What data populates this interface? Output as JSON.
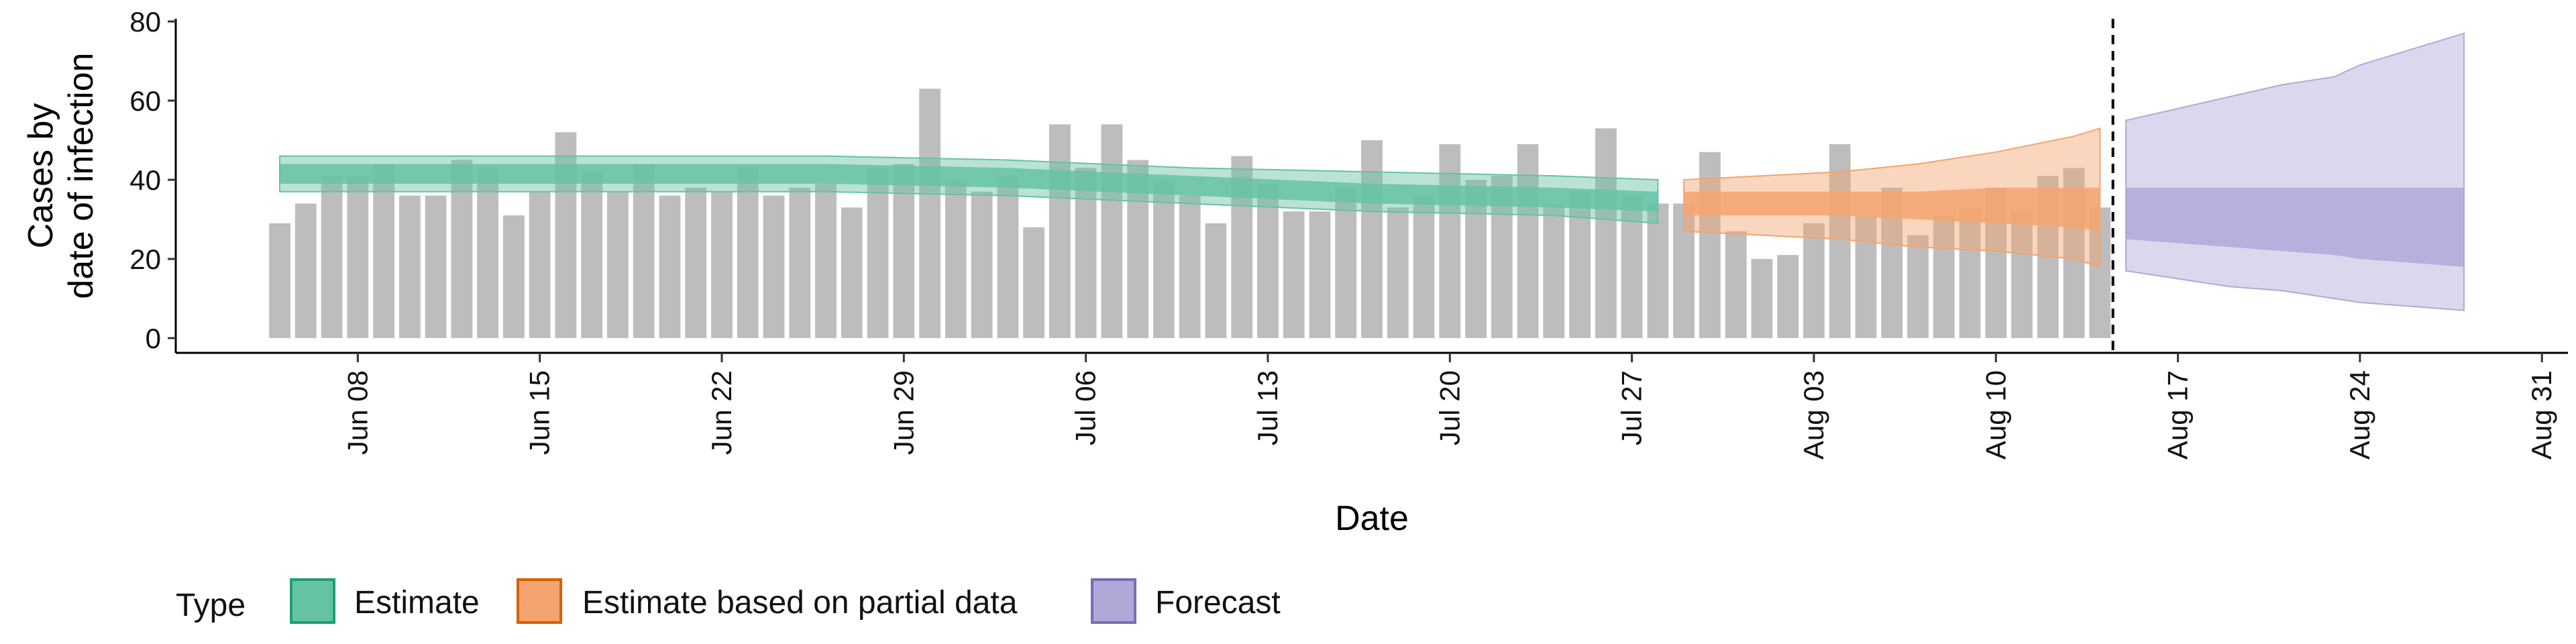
{
  "chart_data": {
    "type": "bar",
    "xlabel": "Date",
    "ylabel_lines": [
      "Cases by",
      "date of infection"
    ],
    "ylim": [
      0,
      80
    ],
    "yticks": [
      0,
      20,
      40,
      60,
      80
    ],
    "xlim": [
      "2020-06-01",
      "2020-09-01"
    ],
    "xticks": [
      {
        "date": "2020-06-08",
        "label": "Jun 08"
      },
      {
        "date": "2020-06-15",
        "label": "Jun 15"
      },
      {
        "date": "2020-06-22",
        "label": "Jun 22"
      },
      {
        "date": "2020-06-29",
        "label": "Jun 29"
      },
      {
        "date": "2020-07-06",
        "label": "Jul 06"
      },
      {
        "date": "2020-07-13",
        "label": "Jul 13"
      },
      {
        "date": "2020-07-20",
        "label": "Jul 20"
      },
      {
        "date": "2020-07-27",
        "label": "Jul 27"
      },
      {
        "date": "2020-08-03",
        "label": "Aug 03"
      },
      {
        "date": "2020-08-10",
        "label": "Aug 10"
      },
      {
        "date": "2020-08-17",
        "label": "Aug 17"
      },
      {
        "date": "2020-08-24",
        "label": "Aug 24"
      },
      {
        "date": "2020-08-31",
        "label": "Aug 31"
      }
    ],
    "reported_cases": {
      "start_date": "2020-06-05",
      "values": [
        29,
        34,
        41,
        41,
        44,
        36,
        36,
        45,
        43,
        31,
        37,
        52,
        42,
        37,
        44,
        36,
        38,
        37,
        43,
        36,
        38,
        39,
        33,
        43,
        44,
        63,
        40,
        37,
        41,
        28,
        54,
        43,
        54,
        45,
        40,
        36,
        29,
        46,
        39,
        32,
        32,
        38,
        50,
        33,
        36,
        49,
        40,
        41,
        49,
        34,
        37,
        53,
        36,
        34,
        34,
        47,
        27,
        20,
        21,
        29,
        49,
        31,
        38,
        26,
        31,
        33,
        38,
        32,
        41,
        43,
        33
      ]
    },
    "cutoff_date": "2020-08-14",
    "legend": {
      "title": "Type",
      "position": "bottom",
      "entries": [
        {
          "label": "Estimate",
          "fill": "#66C2A5",
          "stroke": "#1B9E77"
        },
        {
          "label": "Estimate based on partial data",
          "fill": "#F4A46E",
          "stroke": "#D95F02"
        },
        {
          "label": "Forecast",
          "fill": "#AFA9D8",
          "stroke": "#7570B3"
        }
      ]
    },
    "series": [
      {
        "name": "Estimate",
        "color": "#66C2A5",
        "dates": [
          "2020-06-05",
          "2020-06-12",
          "2020-06-19",
          "2020-06-26",
          "2020-07-03",
          "2020-07-10",
          "2020-07-17",
          "2020-07-24",
          "2020-07-28"
        ],
        "inner_lower": [
          39,
          39,
          39,
          39,
          38,
          36,
          34,
          33,
          32
        ],
        "inner_upper": [
          44,
          44,
          44,
          44,
          43,
          41,
          39,
          38,
          37
        ],
        "outer_lower": [
          37,
          37,
          37,
          37,
          36,
          34,
          32,
          31,
          29
        ],
        "outer_upper": [
          46,
          46,
          46,
          46,
          45,
          43,
          42,
          41,
          40
        ]
      },
      {
        "name": "Estimate based on partial data",
        "color": "#F4A46E",
        "dates": [
          "2020-07-29",
          "2020-08-01",
          "2020-08-04",
          "2020-08-07",
          "2020-08-10",
          "2020-08-13",
          "2020-08-14"
        ],
        "inner_lower": [
          31,
          31,
          31,
          30,
          29,
          28,
          27
        ],
        "inner_upper": [
          37,
          37,
          37,
          37,
          38,
          38,
          38
        ],
        "outer_lower": [
          27,
          26,
          25,
          23,
          22,
          20,
          18
        ],
        "outer_upper": [
          40,
          41,
          42,
          44,
          47,
          51,
          53
        ]
      },
      {
        "name": "Forecast",
        "color": "#AFA9D8",
        "dates": [
          "2020-08-15",
          "2020-08-17",
          "2020-08-19",
          "2020-08-21",
          "2020-08-23",
          "2020-08-24",
          "2020-08-26",
          "2020-08-28"
        ],
        "inner_lower": [
          25,
          24,
          23,
          22,
          21,
          20,
          19,
          18
        ],
        "inner_upper": [
          38,
          38,
          38,
          38,
          38,
          38,
          38,
          38
        ],
        "outer_lower": [
          17,
          15,
          13,
          12,
          10,
          9,
          8,
          7
        ],
        "outer_upper": [
          55,
          58,
          61,
          64,
          66,
          69,
          73,
          77
        ]
      }
    ]
  }
}
